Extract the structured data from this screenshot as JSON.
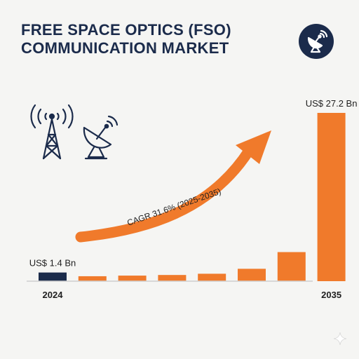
{
  "header": {
    "title_line1": "FREE SPACE OPTICS (FSO)",
    "title_line2": "COMMUNICATION MARKET"
  },
  "icons": {
    "badge": "satellite-dish-icon",
    "tower": "cell-tower-icon",
    "dish": "satellite-dish-icon"
  },
  "colors": {
    "navy": "#1b2b4b",
    "orange": "#f07a2b",
    "background": "#f5f5f3"
  },
  "chart_data": {
    "type": "bar",
    "categories": [
      "2024",
      "",
      "",
      "",
      "",
      "",
      "",
      "2035"
    ],
    "values": [
      1.4,
      0.8,
      0.9,
      1.0,
      1.2,
      2.0,
      4.7,
      27.2
    ],
    "value_labels": [
      "US$ 1.4 Bn",
      "",
      "",
      "",
      "",
      "",
      "",
      "US$ 27.2 Bn"
    ],
    "bar_colors": [
      "#1b2b4b",
      "#f07a2b",
      "#f07a2b",
      "#f07a2b",
      "#f07a2b",
      "#f07a2b",
      "#f07a2b",
      "#f07a2b"
    ],
    "annotation": "CAGR 31.6% (2025-2035)",
    "title": "FREE SPACE OPTICS (FSO) COMMUNICATION MARKET",
    "xlabel": "",
    "ylabel": "",
    "grid": false,
    "legend": "none"
  }
}
